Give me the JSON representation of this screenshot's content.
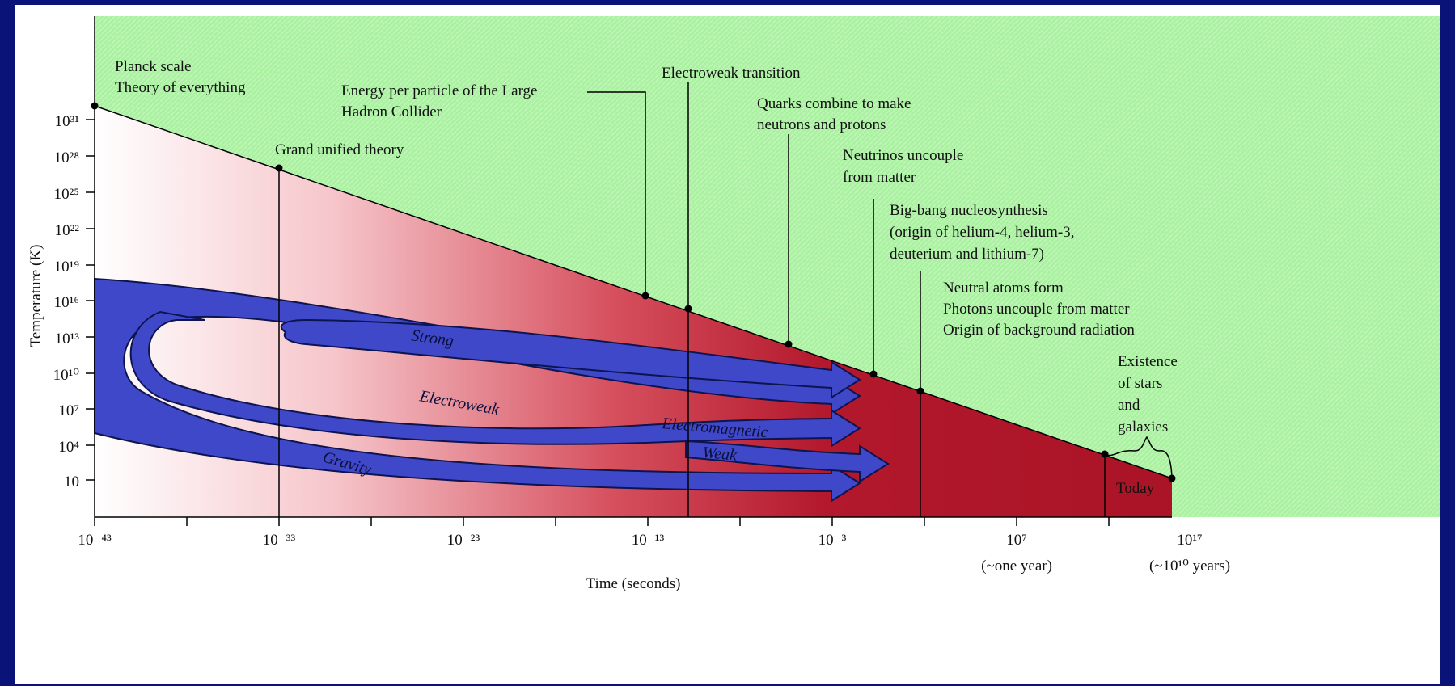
{
  "background_color": "#0a1478",
  "colors": {
    "green": "#a9f2a0",
    "red": "#b0162a",
    "blue": "#3f48c8",
    "axis": "#000000"
  },
  "axes": {
    "x_title": "Time (seconds)",
    "y_title": "Temperature (K)",
    "x_ticks": [
      "10⁻⁴³",
      "10⁻³³",
      "10⁻²³",
      "10⁻¹³",
      "10⁻³",
      "10⁷",
      "10¹⁷"
    ],
    "x_subticks": [
      "(~one year)",
      "(~10¹⁰ years)"
    ],
    "y_ticks": [
      "10³¹",
      "10²⁸",
      "10²⁵",
      "10²²",
      "10¹⁹",
      "10¹⁶",
      "10¹³",
      "10¹⁰",
      "10⁷",
      "10⁴",
      "10"
    ]
  },
  "events": {
    "planck_1": "Planck scale",
    "planck_2": "Theory of everything",
    "gut": "Grand unified theory",
    "lhc_1": "Energy per particle of the Large",
    "lhc_2": "Hadron Collider",
    "ew": "Electroweak transition",
    "quarks_1": "Quarks combine to make",
    "quarks_2": "neutrons and protons",
    "nu_1": "Neutrinos uncouple",
    "nu_2": "from matter",
    "bbn_1": "Big-bang nucleosynthesis",
    "bbn_2": "(origin of helium-4, helium-3,",
    "bbn_3": "deuterium and lithium-7)",
    "atoms_1": "Neutral atoms form",
    "atoms_2": "Photons uncouple from matter",
    "atoms_3": "Origin of background radiation",
    "stars_1": "Existence",
    "stars_2": "of stars",
    "stars_3": "and",
    "stars_4": "galaxies",
    "today": "Today"
  },
  "forces": {
    "strong": "Strong",
    "electroweak": "Electroweak",
    "electromagnetic": "Electromagnetic",
    "weak": "Weak",
    "gravity": "Gravity"
  }
}
